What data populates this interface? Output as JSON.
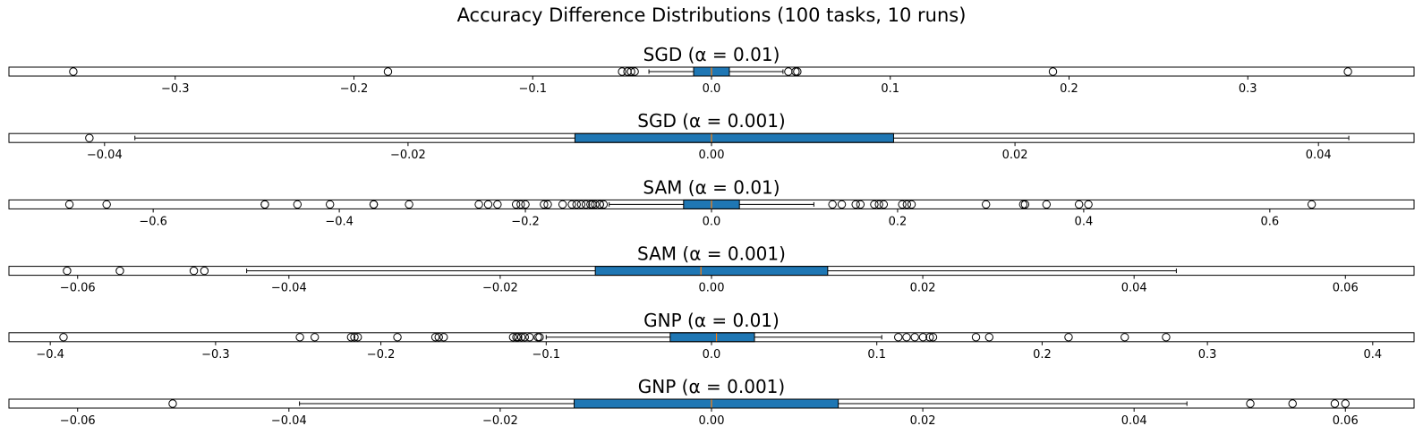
{
  "suptitle": "Accuracy Difference Distributions (100 tasks, 10 runs)",
  "colors": {
    "box_fill": "#1f77b4",
    "median": "#ff7f0e",
    "frame": "#000000"
  },
  "chart_data": [
    {
      "type": "boxplot",
      "orientation": "horizontal",
      "title": "SGD (α = 0.01)",
      "xlim": [
        -0.393,
        0.393
      ],
      "xticks": [
        -0.3,
        -0.2,
        -0.1,
        0.0,
        0.1,
        0.2,
        0.3
      ],
      "xtick_labels": [
        "−0.3",
        "−0.2",
        "−0.1",
        "0.0",
        "0.1",
        "0.2",
        "0.3"
      ],
      "q1": -0.01,
      "median": 0.0,
      "q3": 0.01,
      "whisker_low": -0.035,
      "whisker_high": 0.04,
      "outliers": [
        -0.357,
        -0.181,
        -0.05,
        -0.047,
        -0.045,
        -0.043,
        0.043,
        0.047,
        0.048,
        0.191,
        0.356
      ]
    },
    {
      "type": "boxplot",
      "orientation": "horizontal",
      "title": "SGD (α = 0.001)",
      "xlim": [
        -0.0463,
        0.0463
      ],
      "xticks": [
        -0.04,
        -0.02,
        0.0,
        0.02,
        0.04
      ],
      "xtick_labels": [
        "−0.04",
        "−0.02",
        "0.00",
        "0.02",
        "0.04"
      ],
      "q1": -0.009,
      "median": 0.0,
      "q3": 0.012,
      "whisker_low": -0.038,
      "whisker_high": 0.042,
      "outliers": [
        -0.041
      ]
    },
    {
      "type": "boxplot",
      "orientation": "horizontal",
      "title": "SAM (α = 0.01)",
      "xlim": [
        -0.755,
        0.755
      ],
      "xticks": [
        -0.6,
        -0.4,
        -0.2,
        0.0,
        0.2,
        0.4,
        0.6
      ],
      "xtick_labels": [
        "−0.6",
        "−0.4",
        "−0.2",
        "0.0",
        "0.2",
        "0.4",
        "0.6"
      ],
      "q1": -0.03,
      "median": 0.0,
      "q3": 0.03,
      "whisker_low": -0.11,
      "whisker_high": 0.11,
      "outliers": [
        -0.69,
        -0.65,
        -0.48,
        -0.48,
        -0.445,
        -0.41,
        -0.363,
        -0.363,
        -0.325,
        -0.25,
        -0.24,
        -0.23,
        -0.21,
        -0.205,
        -0.2,
        -0.18,
        -0.176,
        -0.16,
        -0.15,
        -0.145,
        -0.14,
        -0.135,
        -0.13,
        -0.128,
        -0.125,
        -0.12,
        -0.116,
        -0.12,
        0.13,
        0.14,
        0.155,
        0.16,
        0.175,
        0.18,
        0.185,
        0.205,
        0.21,
        0.215,
        0.295,
        0.335,
        0.337,
        0.36,
        0.395,
        0.405,
        0.645
      ]
    },
    {
      "type": "boxplot",
      "orientation": "horizontal",
      "title": "SAM (α = 0.001)",
      "xlim": [
        -0.0665,
        0.0665
      ],
      "xticks": [
        -0.06,
        -0.04,
        -0.02,
        0.0,
        0.02,
        0.04,
        0.06
      ],
      "xtick_labels": [
        "−0.06",
        "−0.04",
        "−0.02",
        "0.00",
        "0.02",
        "0.04",
        "0.06"
      ],
      "q1": -0.011,
      "median": -0.001,
      "q3": 0.011,
      "whisker_low": -0.044,
      "whisker_high": 0.044,
      "outliers": [
        -0.061,
        -0.056,
        -0.049,
        -0.048
      ]
    },
    {
      "type": "boxplot",
      "orientation": "horizontal",
      "title": "GNP (α = 0.01)",
      "xlim": [
        -0.425,
        0.425
      ],
      "xticks": [
        -0.4,
        -0.3,
        -0.2,
        -0.1,
        0.0,
        0.1,
        0.2,
        0.3,
        0.4
      ],
      "xtick_labels": [
        "−0.4",
        "−0.3",
        "−0.2",
        "−0.1",
        "0.0",
        "0.1",
        "0.2",
        "0.3",
        "0.4"
      ],
      "q1": -0.025,
      "median": 0.003,
      "q3": 0.026,
      "whisker_low": -0.1,
      "whisker_high": 0.103,
      "outliers": [
        -0.392,
        -0.249,
        -0.24,
        -0.218,
        -0.216,
        -0.214,
        -0.19,
        -0.167,
        -0.165,
        -0.162,
        -0.12,
        -0.118,
        -0.117,
        -0.115,
        -0.113,
        -0.11,
        -0.105,
        -0.104,
        0.113,
        0.118,
        0.123,
        0.128,
        0.132,
        0.134,
        0.16,
        0.168,
        0.216,
        0.25,
        0.275
      ]
    },
    {
      "type": "boxplot",
      "orientation": "horizontal",
      "title": "GNP (α = 0.001)",
      "xlim": [
        -0.0665,
        0.0665
      ],
      "xticks": [
        -0.06,
        -0.04,
        -0.02,
        0.0,
        0.02,
        0.04,
        0.06
      ],
      "xtick_labels": [
        "−0.06",
        "−0.04",
        "−0.02",
        "0.00",
        "0.02",
        "0.04",
        "0.06"
      ],
      "q1": -0.013,
      "median": 0.0,
      "q3": 0.012,
      "whisker_low": -0.039,
      "whisker_high": 0.045,
      "outliers": [
        -0.051,
        0.051,
        0.055,
        0.059,
        0.06
      ]
    }
  ]
}
